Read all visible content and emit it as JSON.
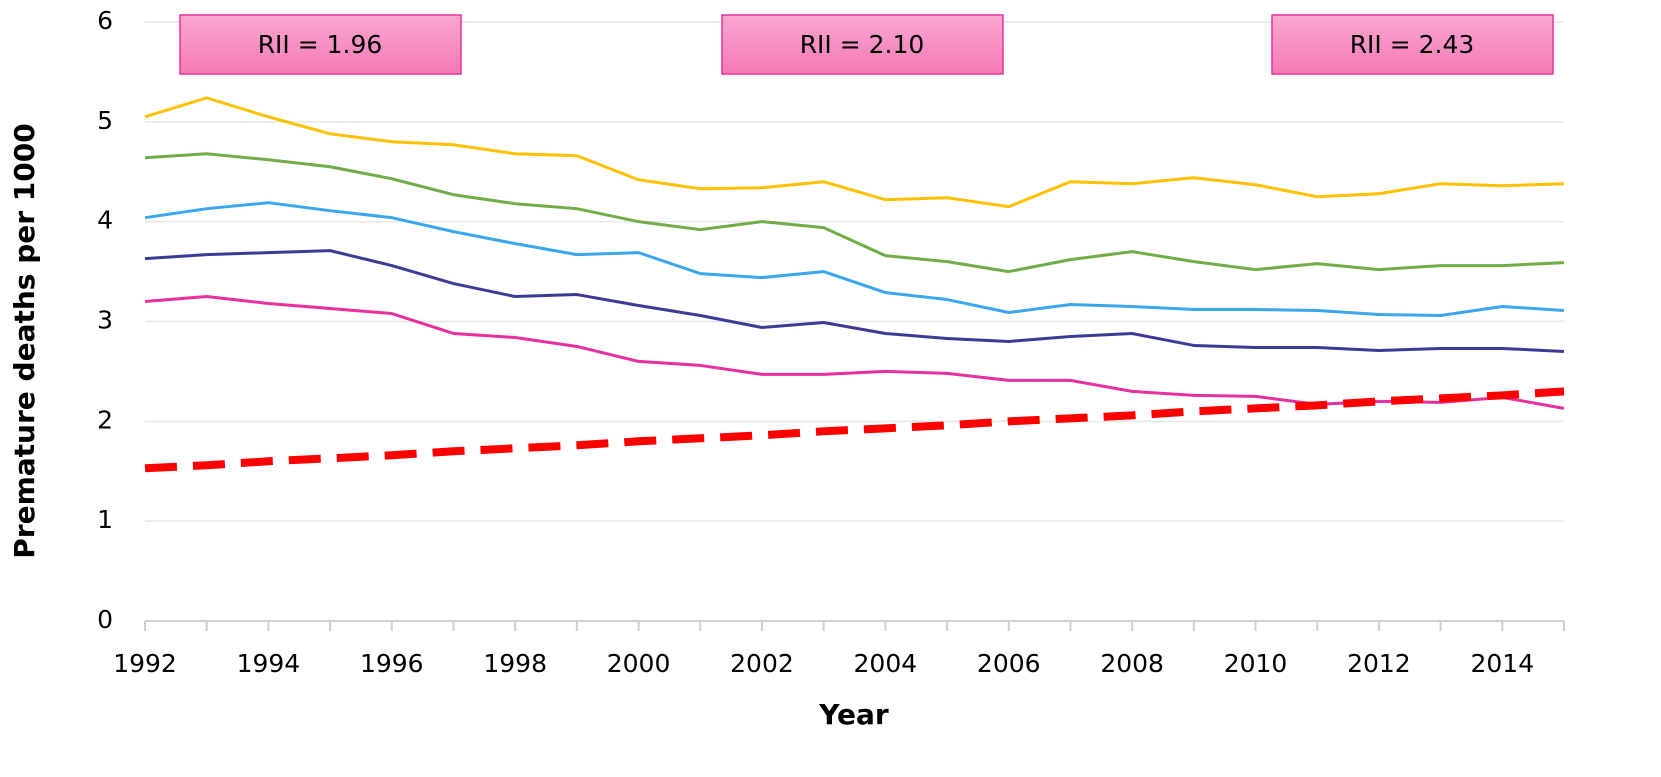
{
  "chart_data": {
    "type": "line",
    "xlabel": "Year",
    "ylabel": "Premature deaths per 1000",
    "x": [
      1992,
      1993,
      1994,
      1995,
      1996,
      1997,
      1998,
      1999,
      2000,
      2001,
      2002,
      2003,
      2004,
      2005,
      2006,
      2007,
      2008,
      2009,
      2010,
      2011,
      2012,
      2013,
      2014,
      2015
    ],
    "series": [
      {
        "color": "#FFC000",
        "values": [
          5.05,
          5.24,
          5.05,
          4.88,
          4.8,
          4.77,
          4.68,
          4.66,
          4.42,
          4.33,
          4.34,
          4.4,
          4.22,
          4.24,
          4.15,
          4.4,
          4.38,
          4.44,
          4.37,
          4.25,
          4.28,
          4.38,
          4.36,
          4.38
        ]
      },
      {
        "color": "#70AD47",
        "values": [
          4.64,
          4.68,
          4.62,
          4.55,
          4.43,
          4.27,
          4.18,
          4.13,
          4.0,
          3.92,
          4.0,
          3.94,
          3.66,
          3.6,
          3.5,
          3.62,
          3.7,
          3.6,
          3.52,
          3.58,
          3.52,
          3.56,
          3.56,
          3.59
        ]
      },
      {
        "color": "#3AA6EE",
        "values": [
          4.04,
          4.13,
          4.19,
          4.11,
          4.04,
          3.9,
          3.78,
          3.67,
          3.69,
          3.48,
          3.44,
          3.5,
          3.29,
          3.22,
          3.09,
          3.17,
          3.15,
          3.12,
          3.12,
          3.11,
          3.07,
          3.06,
          3.15,
          3.11
        ]
      },
      {
        "color": "#3C3C96",
        "values": [
          3.63,
          3.67,
          3.69,
          3.71,
          3.56,
          3.38,
          3.25,
          3.27,
          3.16,
          3.06,
          2.94,
          2.99,
          2.88,
          2.83,
          2.8,
          2.85,
          2.88,
          2.76,
          2.74,
          2.74,
          2.71,
          2.73,
          2.73,
          2.7
        ]
      },
      {
        "color": "#E8309E",
        "values": [
          3.2,
          3.25,
          3.18,
          3.13,
          3.08,
          2.88,
          2.84,
          2.75,
          2.6,
          2.56,
          2.47,
          2.47,
          2.5,
          2.48,
          2.41,
          2.41,
          2.3,
          2.26,
          2.25,
          2.17,
          2.2,
          2.19,
          2.24,
          2.13
        ]
      },
      {
        "color": "#FF0000",
        "dashed": true,
        "values": [
          1.53,
          1.56,
          1.6,
          1.63,
          1.66,
          1.7,
          1.73,
          1.76,
          1.8,
          1.83,
          1.86,
          1.9,
          1.93,
          1.96,
          2.0,
          2.03,
          2.06,
          2.1,
          2.13,
          2.16,
          2.2,
          2.23,
          2.26,
          2.3
        ]
      }
    ],
    "annotations": [
      "RII = 1.96",
      "RII = 2.10",
      "RII = 2.43"
    ],
    "xlim": [
      1992,
      2015
    ],
    "xticks": [
      1992,
      1994,
      1996,
      1998,
      2000,
      2002,
      2004,
      2006,
      2008,
      2010,
      2012,
      2014
    ],
    "ylim": [
      0,
      6
    ],
    "yticks": [
      0,
      1,
      2,
      3,
      4,
      5,
      6
    ],
    "grid": true
  }
}
